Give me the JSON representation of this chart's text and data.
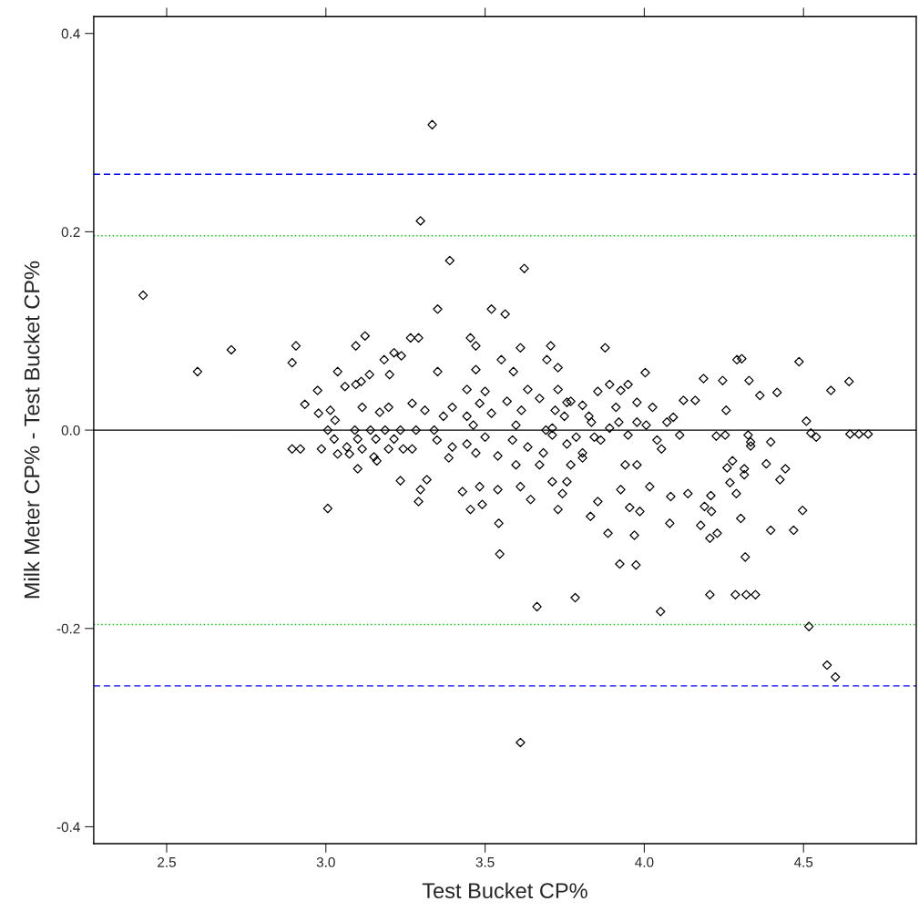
{
  "chart_data": {
    "type": "scatter",
    "xlabel": "Test Bucket CP%",
    "ylabel": "Milk Meter CP% - Test Bucket CP%",
    "xlim": [
      2.271,
      4.854
    ],
    "ylim": [
      -0.417,
      0.417
    ],
    "xticks": [
      2.5,
      {
        "value": 3,
        "label": "3.0"
      },
      3.5,
      {
        "value": 4,
        "label": "4.0"
      },
      4.5
    ],
    "yticks": [
      -0.4,
      -0.2,
      {
        "value": 0,
        "label": "0.0"
      },
      0.2,
      0.4
    ],
    "marker": "diamond",
    "grid": false,
    "legend": false,
    "ref_lines": [
      {
        "axis": "y",
        "value": 0.0,
        "color": "#000000",
        "line_style": "solid"
      },
      {
        "axis": "y",
        "value": 0.196,
        "color": "#00cc00",
        "line_style": "dotted"
      },
      {
        "axis": "y",
        "value": -0.196,
        "color": "#00cc00",
        "line_style": "dotted"
      },
      {
        "axis": "y",
        "value": 0.258,
        "color": "#0000ff",
        "line_style": "dashed"
      },
      {
        "axis": "y",
        "value": -0.258,
        "color": "#0000ff",
        "line_style": "dashed"
      }
    ],
    "series": [
      {
        "color": "#000000",
        "x": [
          2.426,
          2.597,
          2.703,
          2.894,
          2.906,
          2.934,
          2.974,
          2.894,
          2.92,
          2.986,
          3.006,
          3.334,
          3.297,
          3.389,
          3.351,
          3.52,
          3.563,
          3.623,
          3.663,
          3.783,
          3.611,
          3.546,
          3.543,
          4.206,
          4.286,
          4.32,
          4.349,
          3.974,
          4.051,
          4.517,
          4.574,
          4.6,
          4.497,
          4.486,
          4.586,
          4.643,
          4.509,
          4.523,
          4.54,
          4.646,
          4.674,
          4.703,
          4.306,
          4.469,
          4.314,
          4.334,
          4.26,
          4.269,
          4.209,
          4.189,
          4.397,
          4.317,
          4.229,
          4.206,
          4.177,
          4.211,
          4.303,
          4.08,
          3.969,
          3.886,
          3.923,
          3.831,
          3.729,
          4.291,
          4.186,
          4.246,
          4.329,
          4.363,
          4.417,
          3.877,
          3.706,
          4.257,
          4.123,
          4.16,
          4.003,
          4.277,
          4.383,
          4.443,
          4.426,
          4.314,
          4.083,
          4.137,
          4.017,
          4.289,
          3.926,
          3.854,
          3.954,
          3.986,
          4.397,
          4.326,
          4.111,
          4.226,
          4.334,
          4.254,
          3.123,
          3.094,
          3.266,
          3.291,
          3.454,
          3.471,
          3.611,
          3.183,
          3.214,
          3.237,
          3.551,
          3.037,
          3.06,
          3.094,
          3.111,
          3.137,
          3.2,
          3.351,
          3.471,
          3.589,
          3.694,
          3.729,
          2.977,
          3.014,
          3.029,
          3.006,
          3.026,
          3.037,
          3.066,
          3.074,
          3.1,
          3.151,
          3.16,
          3.234,
          3.297,
          3.317,
          3.291,
          3.454,
          3.491,
          3.429,
          3.483,
          3.54,
          3.611,
          3.643,
          3.711,
          3.757,
          3.743,
          3.091,
          3.14,
          3.186,
          3.234,
          3.283,
          3.34,
          3.1,
          3.157,
          3.214,
          3.114,
          3.197,
          3.243,
          3.271,
          3.114,
          3.169,
          3.197,
          3.271,
          3.311,
          3.369,
          3.397,
          3.443,
          3.483,
          3.52,
          3.569,
          3.614,
          3.671,
          3.72,
          3.769,
          3.826,
          3.349,
          3.397,
          3.443,
          3.471,
          3.5,
          3.54,
          3.586,
          3.634,
          3.683,
          3.711,
          3.757,
          3.806,
          3.843,
          3.463,
          3.597,
          3.691,
          3.5,
          3.634,
          3.443,
          3.386,
          3.597,
          3.671,
          3.711,
          3.749,
          3.786,
          3.834,
          3.863,
          3.891,
          3.92,
          3.949,
          3.977,
          4.006,
          3.806,
          3.769,
          3.94,
          3.977,
          3.911,
          3.806,
          3.757,
          3.977,
          4.026,
          4.071,
          4.091,
          4.054,
          4.04,
          3.729,
          3.854,
          3.891,
          3.949,
          3.926
        ],
        "values": [
          0.136,
          0.059,
          0.081,
          0.068,
          0.085,
          0.026,
          0.04,
          -0.019,
          -0.019,
          -0.019,
          -0.079,
          0.308,
          0.211,
          0.171,
          0.122,
          0.122,
          0.117,
          0.163,
          -0.178,
          -0.169,
          -0.315,
          -0.125,
          -0.094,
          -0.166,
          -0.166,
          -0.166,
          -0.166,
          -0.136,
          -0.183,
          -0.198,
          -0.237,
          -0.249,
          -0.081,
          0.069,
          0.04,
          0.049,
          0.009,
          -0.003,
          -0.007,
          -0.004,
          -0.004,
          -0.004,
          0.072,
          -0.101,
          -0.039,
          -0.016,
          -0.038,
          -0.053,
          -0.066,
          -0.077,
          -0.101,
          -0.128,
          -0.104,
          -0.109,
          -0.096,
          -0.082,
          -0.089,
          -0.094,
          -0.106,
          -0.104,
          -0.135,
          -0.087,
          -0.08,
          0.071,
          0.052,
          0.05,
          0.05,
          0.035,
          0.038,
          0.083,
          0.085,
          0.02,
          0.03,
          0.03,
          0.058,
          -0.031,
          -0.034,
          -0.039,
          -0.05,
          -0.045,
          -0.067,
          -0.064,
          -0.057,
          -0.064,
          -0.06,
          -0.072,
          -0.078,
          -0.082,
          -0.012,
          -0.005,
          -0.005,
          -0.006,
          -0.012,
          -0.005,
          0.095,
          0.085,
          0.093,
          0.093,
          0.093,
          0.085,
          0.083,
          0.071,
          0.078,
          0.075,
          0.071,
          0.059,
          0.044,
          0.046,
          0.049,
          0.056,
          0.056,
          0.059,
          0.061,
          0.059,
          0.071,
          0.063,
          0.017,
          0.02,
          0.01,
          0.0,
          -0.009,
          -0.024,
          -0.017,
          -0.024,
          -0.039,
          -0.027,
          -0.031,
          -0.051,
          -0.06,
          -0.05,
          -0.072,
          -0.08,
          -0.075,
          -0.062,
          -0.057,
          -0.06,
          -0.057,
          -0.07,
          -0.052,
          -0.052,
          -0.064,
          0.0,
          0.0,
          0.0,
          0.0,
          0.0,
          0.0,
          -0.009,
          -0.009,
          -0.009,
          -0.019,
          -0.019,
          -0.019,
          -0.019,
          0.023,
          0.018,
          0.023,
          0.027,
          0.02,
          0.014,
          0.023,
          0.014,
          0.027,
          0.017,
          0.029,
          0.02,
          0.032,
          0.02,
          0.029,
          0.014,
          -0.01,
          -0.017,
          -0.014,
          -0.023,
          -0.007,
          -0.026,
          -0.01,
          -0.017,
          -0.023,
          -0.005,
          -0.014,
          -0.023,
          -0.007,
          0.005,
          0.005,
          0.0,
          0.039,
          0.041,
          0.041,
          -0.028,
          -0.035,
          -0.035,
          0.002,
          0.014,
          -0.007,
          0.008,
          -0.01,
          0.002,
          0.008,
          -0.005,
          0.008,
          0.005,
          -0.028,
          -0.035,
          -0.035,
          -0.035,
          0.023,
          0.025,
          0.028,
          0.028,
          0.023,
          0.008,
          0.013,
          -0.019,
          -0.01,
          0.041,
          0.039,
          0.046,
          0.046,
          0.04
        ]
      }
    ]
  }
}
